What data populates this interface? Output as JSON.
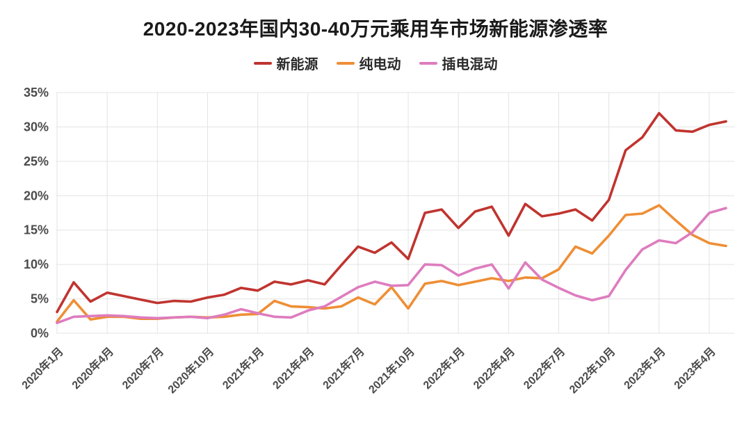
{
  "title": "2020-2023年国内30-40万元乘用车市场新能源渗透率",
  "legend": [
    {
      "label": "新能源",
      "color": "#c0342f"
    },
    {
      "label": "纯电动",
      "color": "#ef8e35"
    },
    {
      "label": "插电混动",
      "color": "#de7cbe"
    }
  ],
  "chart_data": {
    "type": "line",
    "title": "2020-2023年国内30-40万元乘用车市场新能源渗透率",
    "x": [
      "2020年1月",
      "2020年2月",
      "2020年3月",
      "2020年4月",
      "2020年5月",
      "2020年6月",
      "2020年7月",
      "2020年8月",
      "2020年9月",
      "2020年10月",
      "2020年11月",
      "2020年12月",
      "2021年1月",
      "2021年2月",
      "2021年3月",
      "2021年4月",
      "2021年5月",
      "2021年6月",
      "2021年7月",
      "2021年8月",
      "2021年9月",
      "2021年10月",
      "2021年11月",
      "2021年12月",
      "2022年1月",
      "2022年2月",
      "2022年3月",
      "2022年4月",
      "2022年5月",
      "2022年6月",
      "2022年7月",
      "2022年8月",
      "2022年9月",
      "2022年10月",
      "2022年11月",
      "2022年12月",
      "2023年1月",
      "2023年2月",
      "2023年3月",
      "2023年4月",
      "2023年5月"
    ],
    "x_tick_every": 3,
    "x_tick_labels": [
      "2020年1月",
      "2020年4月",
      "2020年7月",
      "2020年10月",
      "2021年1月",
      "2021年4月",
      "2021年7月",
      "2021年10月",
      "2022年1月",
      "2022年4月",
      "2022年7月",
      "2022年10月",
      "2023年1月",
      "2023年4月"
    ],
    "x_labels_rotation": 45,
    "series": [
      {
        "name": "新能源",
        "color": "#c0342f",
        "values": [
          3.1,
          7.4,
          4.6,
          5.9,
          5.4,
          4.9,
          4.4,
          4.7,
          4.6,
          5.2,
          5.6,
          6.6,
          6.2,
          7.5,
          7.1,
          7.7,
          7.1,
          9.9,
          12.6,
          11.7,
          13.2,
          10.8,
          17.5,
          18.0,
          15.3,
          17.7,
          18.4,
          14.2,
          18.8,
          17.0,
          17.4,
          18.0,
          16.4,
          19.4,
          26.6,
          28.5,
          32.0,
          29.5,
          29.3,
          30.3,
          30.8
        ]
      },
      {
        "name": "纯电动",
        "color": "#ef8e35",
        "values": [
          1.7,
          4.8,
          2.0,
          2.4,
          2.4,
          2.1,
          2.1,
          2.3,
          2.4,
          2.3,
          2.4,
          2.7,
          2.8,
          4.7,
          3.9,
          3.8,
          3.6,
          3.9,
          5.2,
          4.2,
          6.7,
          3.6,
          7.2,
          7.6,
          7.0,
          7.5,
          8.0,
          7.6,
          8.1,
          8.0,
          9.3,
          12.6,
          11.6,
          14.2,
          17.2,
          17.4,
          18.6,
          16.4,
          14.3,
          13.1,
          12.7
        ]
      },
      {
        "name": "插电混动",
        "color": "#de7cbe",
        "values": [
          1.5,
          2.4,
          2.5,
          2.6,
          2.5,
          2.3,
          2.2,
          2.3,
          2.4,
          2.2,
          2.7,
          3.5,
          2.9,
          2.4,
          2.3,
          3.3,
          3.9,
          5.3,
          6.7,
          7.5,
          6.9,
          7.0,
          10.0,
          9.9,
          8.4,
          9.4,
          10.0,
          6.5,
          10.3,
          7.8,
          6.6,
          5.5,
          4.8,
          5.4,
          9.2,
          12.2,
          13.5,
          13.1,
          14.7,
          17.5,
          18.2
        ]
      }
    ],
    "ylim": [
      0,
      35
    ],
    "ytick_step": 5,
    "ytick_labels": [
      "0%",
      "5%",
      "10%",
      "15%",
      "20%",
      "25%",
      "30%",
      "35%"
    ],
    "grid": true,
    "legend_position": "top"
  }
}
